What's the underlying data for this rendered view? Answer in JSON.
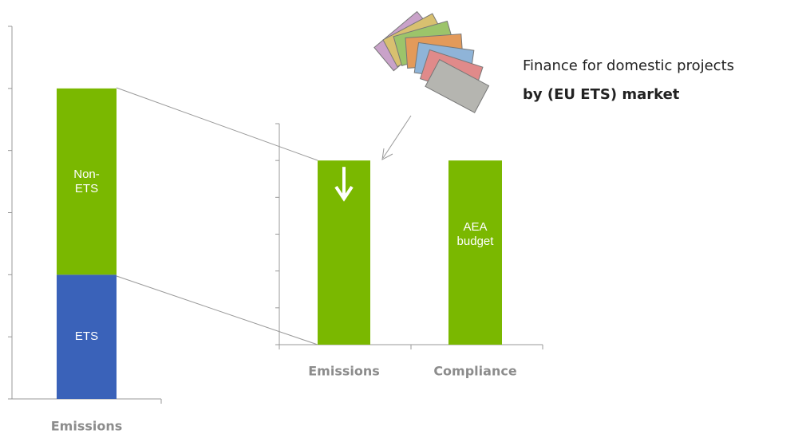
{
  "chart_data": [
    {
      "type": "stacked_bar",
      "categories": [
        "Emissions"
      ],
      "series": [
        {
          "name": "ETS",
          "color": "#3a62b9",
          "values": [
            2
          ]
        },
        {
          "name": "Non-ETS",
          "color": "#7ab800",
          "values": [
            3
          ]
        }
      ],
      "ylim": [
        0,
        6
      ],
      "yticks": [
        0,
        1,
        2,
        3,
        4,
        5,
        6
      ]
    },
    {
      "type": "bar",
      "categories": [
        "Emissions",
        "Compliance"
      ],
      "values": [
        5,
        5
      ],
      "color": "#7ab800",
      "ylim": [
        0,
        6
      ],
      "yticks": [
        0,
        1,
        2,
        3,
        4,
        5,
        6
      ],
      "bar_annotation": "AEA budget",
      "annotation": "Finance for domestic projects",
      "annotation_bold": "by (EU ETS) market"
    }
  ]
}
